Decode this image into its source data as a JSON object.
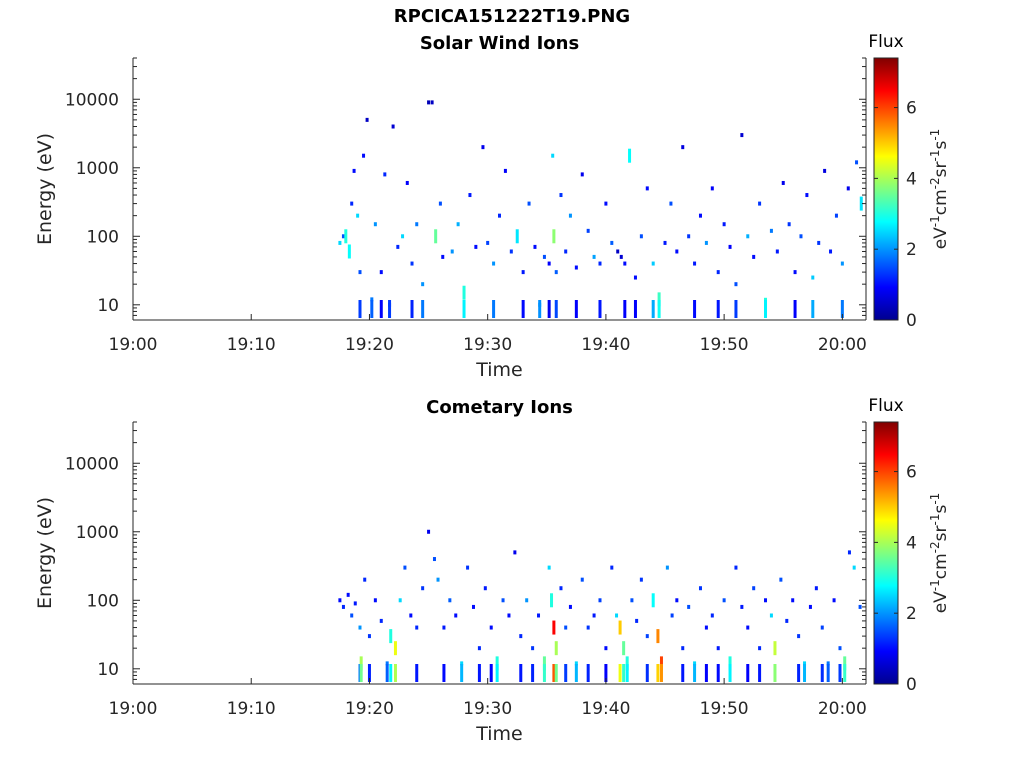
{
  "figure": {
    "title": "RPCICA151222T19.PNG"
  },
  "colorbar": {
    "label": "Flux",
    "unit_base": "eV",
    "unit_exp1": "-1",
    "unit_mid1": "cm",
    "unit_exp2": "-2",
    "unit_mid2": "sr",
    "unit_exp3": "-1",
    "unit_mid3": "s",
    "unit_exp4": "-1",
    "range": [
      0,
      7.4
    ],
    "ticks": [
      "0",
      "2",
      "4",
      "6"
    ],
    "colormap": "jet"
  },
  "chart_data": [
    {
      "type": "heatmap",
      "title": "Solar Wind Ions",
      "xlabel": "Time",
      "ylabel": "Energy (eV)",
      "x_ticks": [
        "19:00",
        "19:10",
        "19:20",
        "19:30",
        "19:40",
        "19:50",
        "20:00"
      ],
      "x_range_minutes": [
        0,
        62
      ],
      "y_scale": "log",
      "y_ticks": [
        "10",
        "100",
        "1000",
        "10000"
      ],
      "y_range": [
        6,
        40000
      ],
      "data_start_minute": 17.2,
      "points": [
        [
          17.5,
          80,
          2.5
        ],
        [
          17.8,
          100,
          1.5
        ],
        [
          18.0,
          100,
          3.0
        ],
        [
          18.3,
          60,
          2.8
        ],
        [
          18.5,
          300,
          1.2
        ],
        [
          18.7,
          900,
          1.0
        ],
        [
          19.2,
          30,
          1.5
        ],
        [
          19.0,
          200,
          2.5
        ],
        [
          19.5,
          1500,
          1.0
        ],
        [
          19.8,
          5000,
          0.5
        ],
        [
          20.2,
          12,
          1.8
        ],
        [
          20.5,
          150,
          2.0
        ],
        [
          21.0,
          30,
          1.0
        ],
        [
          21.3,
          800,
          1.2
        ],
        [
          21.7,
          10,
          1.5
        ],
        [
          22.0,
          4000,
          0.6
        ],
        [
          22.4,
          70,
          1.2
        ],
        [
          22.8,
          100,
          2.5
        ],
        [
          23.2,
          600,
          0.9
        ],
        [
          23.6,
          40,
          1.3
        ],
        [
          24.0,
          150,
          1.8
        ],
        [
          24.5,
          20,
          2.0
        ],
        [
          25.0,
          9000,
          0.4
        ],
        [
          25.3,
          9000,
          0.5
        ],
        [
          25.6,
          100,
          3.5
        ],
        [
          26.0,
          300,
          1.5
        ],
        [
          26.2,
          50,
          1.0
        ],
        [
          27.0,
          60,
          2.0
        ],
        [
          27.5,
          150,
          2.2
        ],
        [
          28.0,
          15,
          3.0
        ],
        [
          28.5,
          400,
          1.1
        ],
        [
          29.0,
          70,
          1.0
        ],
        [
          29.6,
          2000,
          0.8
        ],
        [
          30.0,
          80,
          1.4
        ],
        [
          30.5,
          40,
          2.0
        ],
        [
          31.0,
          200,
          1.2
        ],
        [
          31.5,
          900,
          0.9
        ],
        [
          32.0,
          60,
          1.3
        ],
        [
          32.5,
          100,
          2.6
        ],
        [
          33.0,
          30,
          1.1
        ],
        [
          33.5,
          300,
          1.5
        ],
        [
          34.0,
          70,
          1.0
        ],
        [
          34.4,
          10,
          2.2
        ],
        [
          34.8,
          50,
          1.5
        ],
        [
          35.2,
          40,
          0.9
        ],
        [
          35.5,
          1500,
          2.5
        ],
        [
          35.6,
          100,
          3.8
        ],
        [
          35.8,
          30,
          1.6
        ],
        [
          36.2,
          400,
          1.3
        ],
        [
          36.6,
          60,
          1.2
        ],
        [
          37.0,
          200,
          2.0
        ],
        [
          37.5,
          35,
          1.0
        ],
        [
          38.0,
          800,
          0.8
        ],
        [
          38.5,
          120,
          1.4
        ],
        [
          39.0,
          50,
          2.1
        ],
        [
          39.5,
          40,
          1.2
        ],
        [
          40.0,
          300,
          1.0
        ],
        [
          40.5,
          80,
          1.6
        ],
        [
          41.0,
          60,
          0.5
        ],
        [
          41.3,
          50,
          0.6
        ],
        [
          41.6,
          40,
          1.0
        ],
        [
          42.0,
          1500,
          2.8
        ],
        [
          42.5,
          25,
          1.0
        ],
        [
          43.0,
          100,
          1.5
        ],
        [
          43.5,
          500,
          1.0
        ],
        [
          44.0,
          40,
          2.4
        ],
        [
          44.5,
          12,
          3.2
        ],
        [
          45.0,
          80,
          1.1
        ],
        [
          45.5,
          300,
          1.5
        ],
        [
          46.0,
          60,
          1.0
        ],
        [
          46.5,
          2000,
          0.7
        ],
        [
          47.0,
          100,
          1.3
        ],
        [
          47.5,
          40,
          1.1
        ],
        [
          48.0,
          200,
          1.0
        ],
        [
          48.5,
          80,
          2.0
        ],
        [
          49.0,
          500,
          0.9
        ],
        [
          49.5,
          30,
          1.2
        ],
        [
          50.0,
          150,
          1.1
        ],
        [
          50.5,
          70,
          0.9
        ],
        [
          51.0,
          20,
          1.5
        ],
        [
          51.5,
          3000,
          0.6
        ],
        [
          52.0,
          100,
          2.2
        ],
        [
          52.5,
          50,
          1.0
        ],
        [
          53.0,
          300,
          1.3
        ],
        [
          53.5,
          10,
          3.0
        ],
        [
          54.0,
          120,
          1.8
        ],
        [
          54.5,
          60,
          1.1
        ],
        [
          55.0,
          600,
          0.8
        ],
        [
          55.5,
          150,
          1.3
        ],
        [
          56.0,
          30,
          1.0
        ],
        [
          56.5,
          100,
          1.5
        ],
        [
          57.0,
          400,
          1.0
        ],
        [
          57.5,
          25,
          2.4
        ],
        [
          58.0,
          80,
          1.3
        ],
        [
          58.5,
          900,
          0.7
        ],
        [
          59.0,
          60,
          1.1
        ],
        [
          59.5,
          200,
          1.4
        ],
        [
          60.0,
          40,
          2.0
        ],
        [
          60.5,
          500,
          0.8
        ],
        [
          61.2,
          1200,
          1.5
        ],
        [
          61.6,
          300,
          2.6
        ]
      ]
    },
    {
      "type": "heatmap",
      "title": "Cometary Ions",
      "xlabel": "Time",
      "ylabel": "Energy (eV)",
      "x_ticks": [
        "19:00",
        "19:10",
        "19:20",
        "19:30",
        "19:40",
        "19:50",
        "20:00"
      ],
      "x_range_minutes": [
        0,
        62
      ],
      "y_scale": "log",
      "y_ticks": [
        "10",
        "100",
        "1000",
        "10000"
      ],
      "y_range": [
        6,
        40000
      ],
      "data_start_minute": 17.2,
      "points": [
        [
          17.5,
          100,
          1.0
        ],
        [
          17.8,
          80,
          1.2
        ],
        [
          18.2,
          120,
          1.0
        ],
        [
          18.5,
          60,
          1.5
        ],
        [
          18.8,
          90,
          1.1
        ],
        [
          19.2,
          40,
          2.0
        ],
        [
          19.3,
          12,
          4.0
        ],
        [
          19.6,
          200,
          1.2
        ],
        [
          20.0,
          30,
          1.3
        ],
        [
          20.5,
          100,
          1.0
        ],
        [
          21.0,
          50,
          1.2
        ],
        [
          21.5,
          12,
          1.8
        ],
        [
          21.8,
          30,
          3.0
        ],
        [
          22.2,
          20,
          4.5
        ],
        [
          22.6,
          100,
          2.5
        ],
        [
          23.0,
          300,
          1.5
        ],
        [
          23.5,
          60,
          1.0
        ],
        [
          24.0,
          40,
          1.2
        ],
        [
          24.5,
          150,
          1.3
        ],
        [
          25.0,
          1000,
          0.8
        ],
        [
          25.5,
          400,
          1.5
        ],
        [
          25.8,
          200,
          2.0
        ],
        [
          26.3,
          40,
          1.1
        ],
        [
          26.8,
          100,
          1.6
        ],
        [
          27.3,
          60,
          1.0
        ],
        [
          27.8,
          12,
          2.5
        ],
        [
          28.3,
          300,
          1.3
        ],
        [
          28.8,
          80,
          1.0
        ],
        [
          29.3,
          20,
          1.2
        ],
        [
          29.8,
          150,
          1.1
        ],
        [
          30.3,
          40,
          1.0
        ],
        [
          30.8,
          12,
          3.0
        ],
        [
          31.3,
          100,
          1.5
        ],
        [
          31.8,
          60,
          1.0
        ],
        [
          32.3,
          500,
          0.8
        ],
        [
          32.8,
          30,
          1.2
        ],
        [
          33.3,
          100,
          2.0
        ],
        [
          33.8,
          20,
          1.3
        ],
        [
          34.3,
          60,
          1.1
        ],
        [
          34.8,
          12,
          3.5
        ],
        [
          35.2,
          300,
          2.5
        ],
        [
          35.4,
          100,
          3.0
        ],
        [
          35.6,
          40,
          6.5
        ],
        [
          35.8,
          20,
          4.0
        ],
        [
          36.2,
          150,
          1.2
        ],
        [
          36.6,
          40,
          1.5
        ],
        [
          37.0,
          80,
          1.0
        ],
        [
          37.5,
          12,
          2.5
        ],
        [
          38.0,
          200,
          1.5
        ],
        [
          38.5,
          40,
          1.3
        ],
        [
          39.0,
          60,
          1.1
        ],
        [
          39.5,
          100,
          1.4
        ],
        [
          40.0,
          20,
          1.0
        ],
        [
          40.5,
          300,
          1.2
        ],
        [
          40.9,
          60,
          2.5
        ],
        [
          41.2,
          40,
          5.0
        ],
        [
          41.5,
          20,
          3.5
        ],
        [
          41.8,
          12,
          3.0
        ],
        [
          42.2,
          100,
          1.5
        ],
        [
          42.6,
          50,
          1.2
        ],
        [
          43.0,
          200,
          1.3
        ],
        [
          43.5,
          30,
          1.4
        ],
        [
          44.0,
          100,
          2.8
        ],
        [
          44.4,
          30,
          5.5
        ],
        [
          44.7,
          12,
          6.0
        ],
        [
          45.2,
          300,
          2.0
        ],
        [
          45.6,
          60,
          1.4
        ],
        [
          46.0,
          100,
          1.0
        ],
        [
          46.5,
          20,
          1.2
        ],
        [
          47.0,
          80,
          1.5
        ],
        [
          47.5,
          12,
          2.5
        ],
        [
          48.0,
          150,
          1.3
        ],
        [
          48.5,
          40,
          1.0
        ],
        [
          49.0,
          60,
          1.2
        ],
        [
          49.5,
          20,
          1.1
        ],
        [
          50.0,
          100,
          1.5
        ],
        [
          50.5,
          12,
          3.0
        ],
        [
          51.0,
          300,
          1.2
        ],
        [
          51.5,
          80,
          1.1
        ],
        [
          52.0,
          40,
          1.0
        ],
        [
          52.5,
          150,
          1.4
        ],
        [
          53.0,
          20,
          1.2
        ],
        [
          53.5,
          100,
          1.0
        ],
        [
          54.0,
          60,
          2.5
        ],
        [
          54.3,
          20,
          4.2
        ],
        [
          54.8,
          200,
          1.5
        ],
        [
          55.3,
          50,
          1.2
        ],
        [
          55.8,
          100,
          1.0
        ],
        [
          56.3,
          30,
          1.3
        ],
        [
          56.8,
          12,
          2.5
        ],
        [
          57.3,
          80,
          1.0
        ],
        [
          57.8,
          150,
          1.1
        ],
        [
          58.3,
          40,
          1.4
        ],
        [
          58.8,
          12,
          1.8
        ],
        [
          59.3,
          100,
          1.0
        ],
        [
          59.8,
          20,
          1.5
        ],
        [
          60.2,
          12,
          3.5
        ],
        [
          60.6,
          500,
          1.2
        ],
        [
          61.0,
          300,
          2.5
        ],
        [
          61.5,
          80,
          1.5
        ]
      ]
    }
  ]
}
